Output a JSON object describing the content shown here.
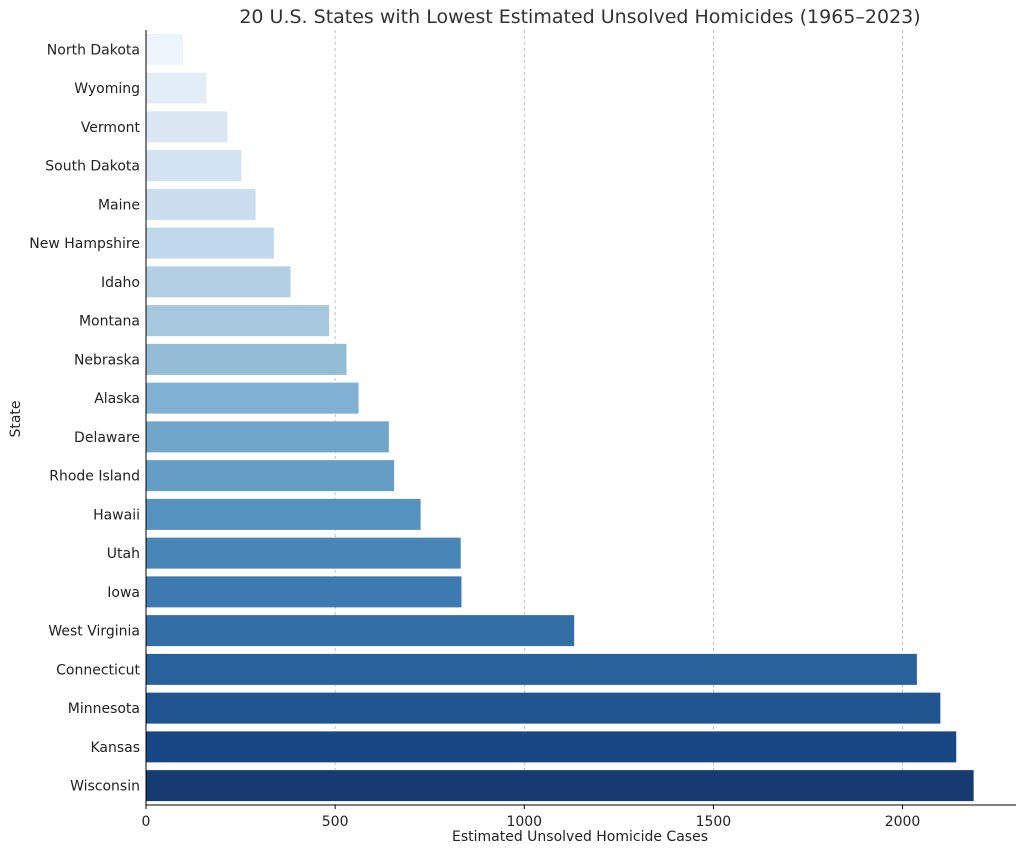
{
  "chart_data": {
    "type": "bar",
    "orientation": "horizontal",
    "title": "20 U.S. States with Lowest Estimated Unsolved Homicides (1965–2023)",
    "xlabel": "Estimated Unsolved Homicide Cases",
    "ylabel": "State",
    "xlim": [
      0,
      2300
    ],
    "xticks": [
      0,
      500,
      1000,
      1500,
      2000
    ],
    "xtick_labels": [
      "0",
      "500",
      "1000",
      "1500",
      "2000"
    ],
    "grid": "x-dashed",
    "categories": [
      "North Dakota",
      "Wyoming",
      "Vermont",
      "South Dakota",
      "Maine",
      "New Hampshire",
      "Idaho",
      "Montana",
      "Nebraska",
      "Alaska",
      "Delaware",
      "Rhode Island",
      "Hawaii",
      "Utah",
      "Iowa",
      "West Virginia",
      "Connecticut",
      "Minnesota",
      "Kansas",
      "Wisconsin"
    ],
    "values": [
      98,
      160,
      215,
      252,
      290,
      338,
      382,
      484,
      530,
      562,
      642,
      656,
      726,
      832,
      834,
      1132,
      2038,
      2100,
      2142,
      2188
    ],
    "colors": [
      "#eef4fb",
      "#e3edf8",
      "#dbe8f4",
      "#d2e3f3",
      "#cadef0",
      "#bed7ea",
      "#b2cfe4",
      "#a5c8de",
      "#93bcd7",
      "#80b1d3",
      "#70a6ca",
      "#649dc6",
      "#5592c0",
      "#4886b8",
      "#3d7ab1",
      "#336ea7",
      "#29619c",
      "#205592",
      "#174885",
      "#163a72"
    ]
  }
}
